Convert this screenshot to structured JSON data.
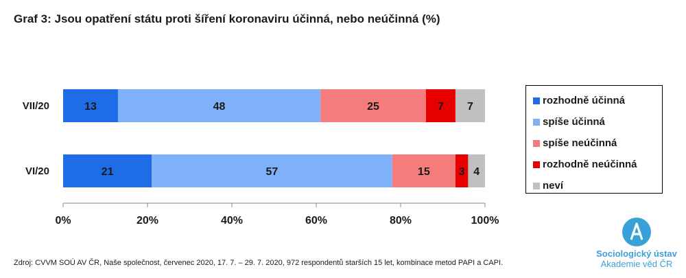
{
  "title": "Graf 3: Jsou opatření státu proti šíření koronaviru účinná, nebo neúčinná (%)",
  "source": "Zdroj: CVVM SOÚ AV ČR, Naše společnost, červenec 2020, 17. 7. – 29. 7. 2020, 972 respondentů starších 15 let, kombinace metod PAPI a CAPI.",
  "logo": {
    "line1": "Sociologický ústav",
    "line2": "Akademie věd ČR",
    "icon": "logo-a-icon"
  },
  "chart_data": {
    "type": "bar",
    "orientation": "horizontal",
    "stacked": true,
    "categories": [
      "VII/20",
      "VI/20"
    ],
    "series": [
      {
        "name": "rozhodně účinná",
        "color": "#1e6de6",
        "values": [
          13,
          21
        ]
      },
      {
        "name": "spíše účinná",
        "color": "#7fb0fa",
        "values": [
          48,
          57
        ]
      },
      {
        "name": "spíše neúčinná",
        "color": "#f47c7c",
        "values": [
          25,
          15
        ]
      },
      {
        "name": "rozhodně neúčinná",
        "color": "#e80000",
        "values": [
          7,
          3
        ]
      },
      {
        "name": "neví",
        "color": "#c0c0c0",
        "values": [
          7,
          4
        ]
      }
    ],
    "xlim": [
      0,
      100
    ],
    "xticks": [
      "0%",
      "20%",
      "40%",
      "60%",
      "80%",
      "100%"
    ],
    "grid": false,
    "legend_position": "right"
  }
}
